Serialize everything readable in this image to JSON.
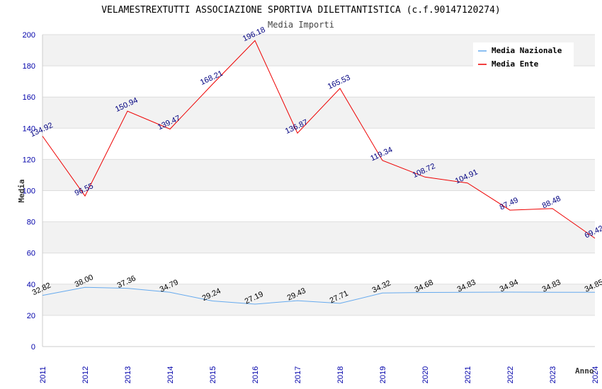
{
  "chart_data": {
    "type": "line",
    "title": "VELAMESTREXTUTTI ASSOCIAZIONE SPORTIVA DILETTANTISTICA (c.f.90147120274)",
    "subtitle": "Media Importi",
    "xlabel": "Anno",
    "ylabel": "Media",
    "x": [
      "2011",
      "2012",
      "2013",
      "2014",
      "2015",
      "2016",
      "2017",
      "2018",
      "2019",
      "2020",
      "2021",
      "2022",
      "2023",
      "2024"
    ],
    "ylim": [
      0,
      200
    ],
    "yticks": [
      "0",
      "20",
      "40",
      "60",
      "80",
      "100",
      "120",
      "140",
      "160",
      "180",
      "200"
    ],
    "grid": true,
    "legend_position": "top-right",
    "series": [
      {
        "name": "Media Nazionale",
        "color": "#66aaee",
        "values": [
          32.82,
          38.0,
          37.36,
          34.79,
          29.24,
          27.19,
          29.43,
          27.71,
          34.32,
          34.68,
          34.83,
          34.94,
          34.83,
          34.85
        ],
        "labels": [
          "32.82",
          "38.00",
          "37.36",
          "34.79",
          "29.24",
          "27.19",
          "29.43",
          "27.71",
          "34.32",
          "34.68",
          "34.83",
          "34.94",
          "34.83",
          "34.85"
        ]
      },
      {
        "name": "Media Ente",
        "color": "#ee0000",
        "values": [
          134.92,
          96.55,
          150.94,
          139.47,
          168.21,
          196.18,
          136.87,
          165.53,
          119.34,
          108.72,
          104.91,
          87.49,
          88.48,
          69.42
        ],
        "labels": [
          "134.92",
          "96.55",
          "150.94",
          "139.47",
          "168.21",
          "196.18",
          "136.87",
          "165.53",
          "119.34",
          "108.72",
          "104.91",
          "87.49",
          "88.48",
          "69.42"
        ]
      }
    ]
  }
}
